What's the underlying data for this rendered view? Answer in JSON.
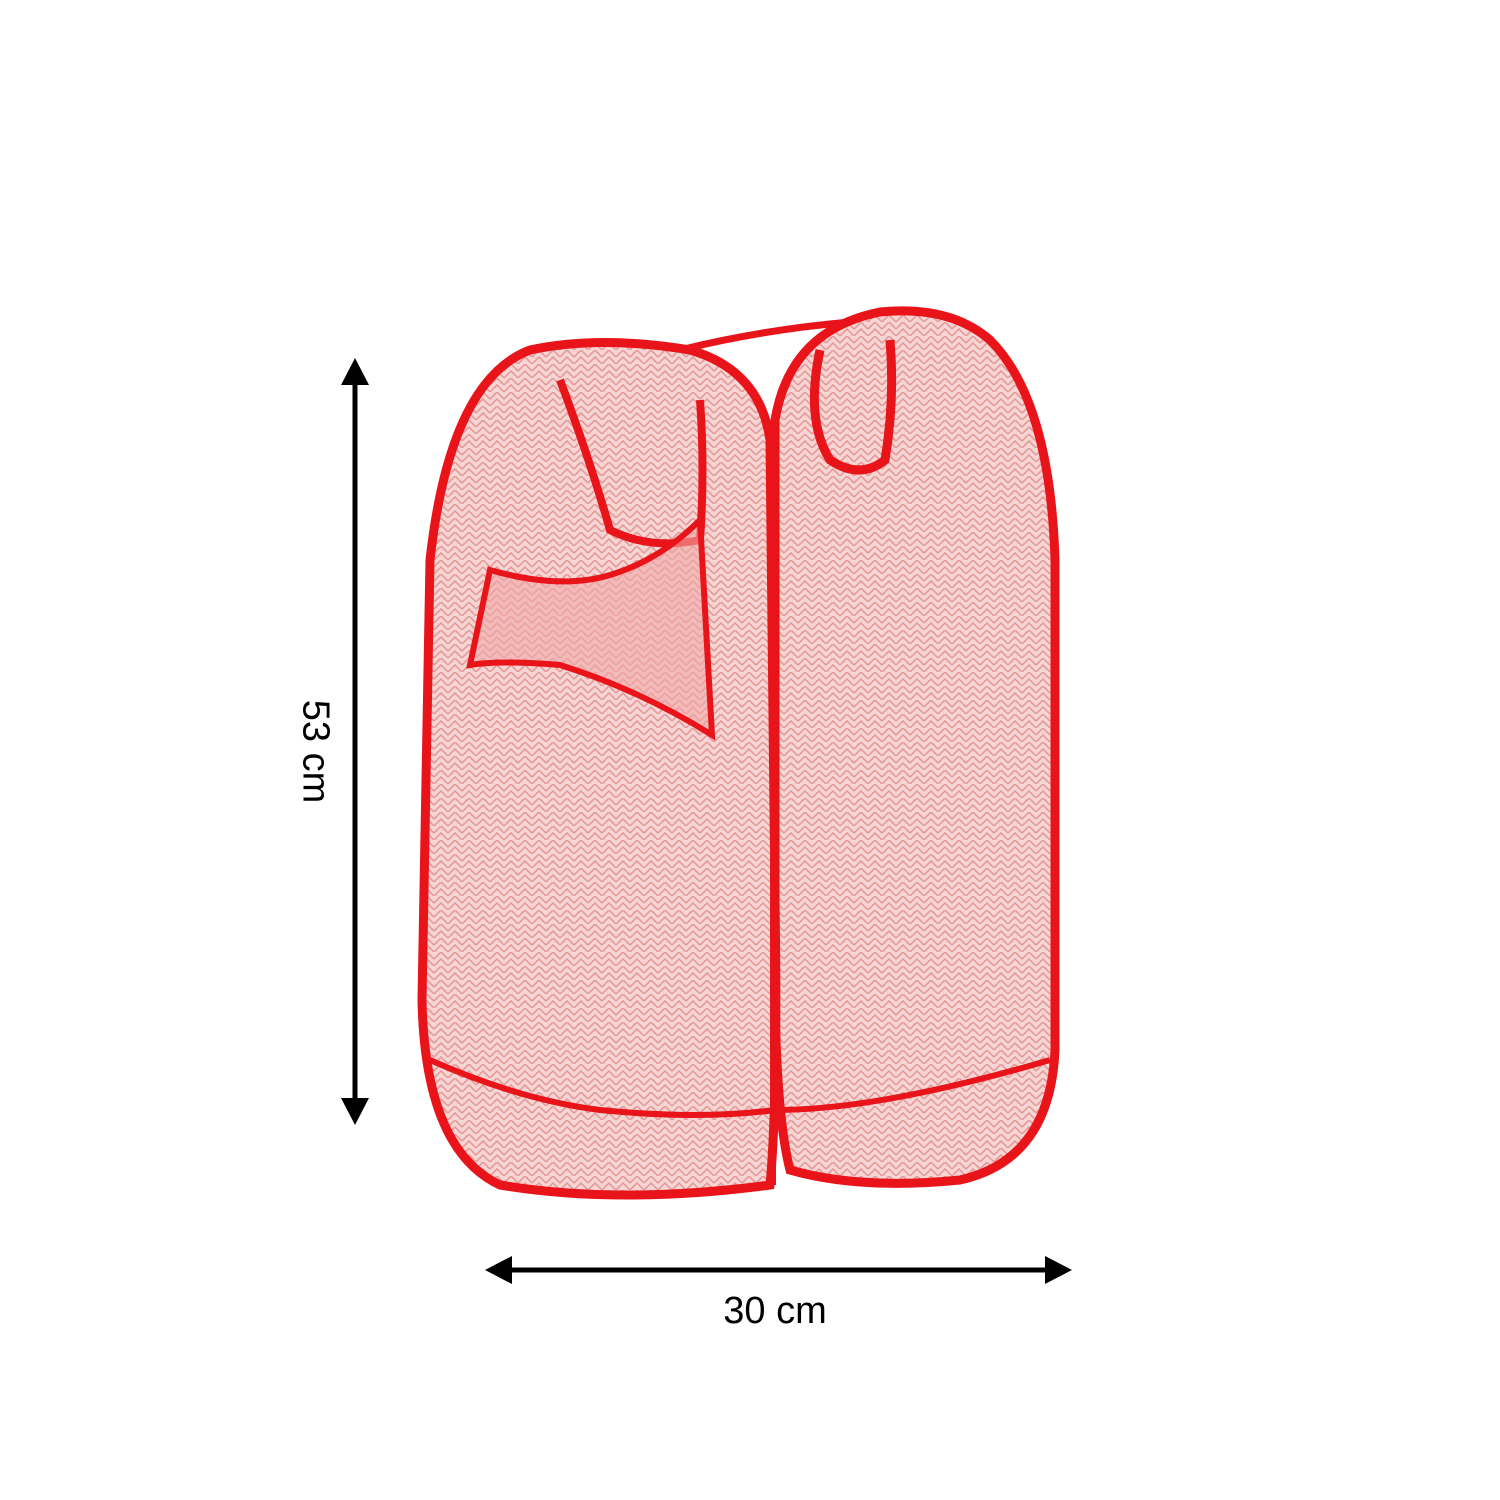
{
  "product": {
    "name_icon": "pop-up-mesh-laundry-hamper",
    "color": "#e8141a",
    "mesh_color": "#f3cfcd"
  },
  "dimensions": {
    "height_label": "53 cm",
    "width_label": "30 cm",
    "arrow_color": "#000000"
  }
}
